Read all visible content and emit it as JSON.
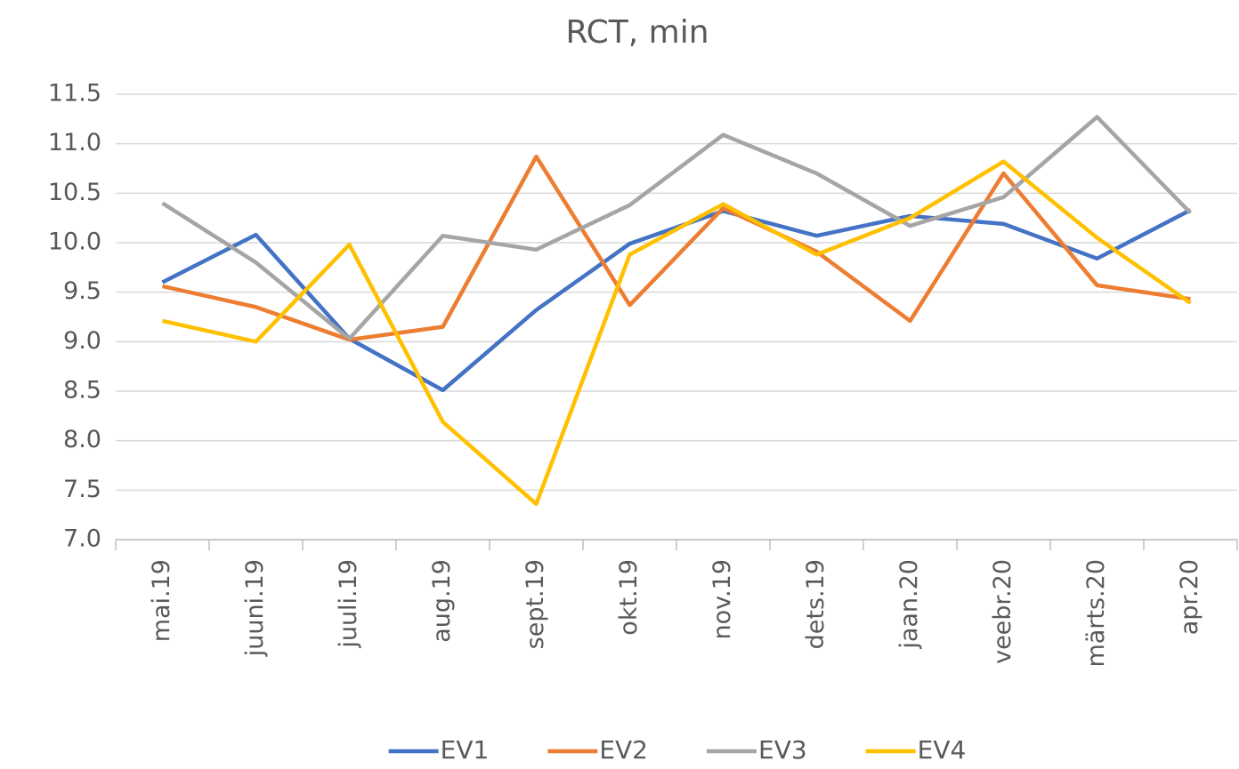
{
  "chart_data": {
    "type": "line",
    "title": "RCT, min",
    "categories": [
      "mai.19",
      "juuni.19",
      "juuli.19",
      "aug.19",
      "sept.19",
      "okt.19",
      "nov.19",
      "dets.19",
      "jaan.20",
      "veebr.20",
      "märts.20",
      "apr.20"
    ],
    "series": [
      {
        "name": "EV1",
        "color": "#4472c4",
        "values": [
          9.6,
          10.08,
          9.03,
          8.51,
          9.32,
          9.99,
          10.32,
          10.07,
          10.27,
          10.19,
          9.84,
          10.33
        ]
      },
      {
        "name": "EV2",
        "color": "#ed7d31",
        "values": [
          9.56,
          9.35,
          9.02,
          9.15,
          10.87,
          9.37,
          10.35,
          9.91,
          9.21,
          10.7,
          9.57,
          9.43
        ]
      },
      {
        "name": "EV3",
        "color": "#a5a5a5",
        "values": [
          10.4,
          9.8,
          9.03,
          10.07,
          9.93,
          10.38,
          11.09,
          10.7,
          10.17,
          10.46,
          11.27,
          10.3
        ]
      },
      {
        "name": "EV4",
        "color": "#ffc000",
        "values": [
          9.21,
          9.0,
          9.98,
          8.19,
          7.36,
          9.88,
          10.39,
          9.88,
          10.25,
          10.82,
          10.05,
          9.39
        ]
      }
    ],
    "ylim": [
      7,
      11.5
    ],
    "yticks": [
      {
        "value": 7,
        "label": "7.0"
      },
      7.5,
      {
        "value": 8,
        "label": "8.0"
      },
      8.5,
      {
        "value": 9,
        "label": "9.0"
      },
      9.5,
      {
        "value": 10,
        "label": "10.0"
      },
      10.5,
      {
        "value": 11,
        "label": "11.0"
      },
      11.5
    ],
    "grid": true,
    "legend": "bottom"
  }
}
